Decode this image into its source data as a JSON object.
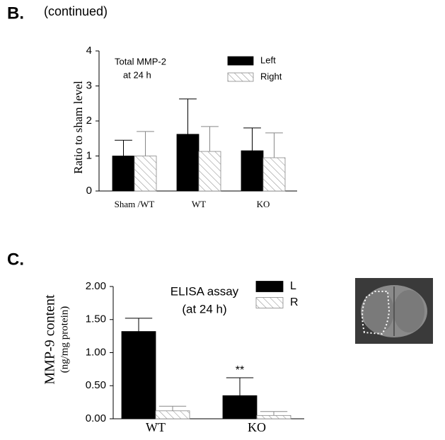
{
  "chart_data": [
    {
      "type": "bar",
      "panel": "B.",
      "note": "(continued)",
      "title": [
        "Total MMP-2",
        "at 24 h"
      ],
      "y_label": [
        "Ratio to sham level"
      ],
      "categories": [
        "Sham /WT",
        "WT",
        "KO"
      ],
      "series": [
        {
          "name": "Left",
          "color": "#000000",
          "values": [
            1.0,
            1.62,
            1.15
          ],
          "errors": [
            0.45,
            1.01,
            0.65
          ]
        },
        {
          "name": "Right",
          "color": "#888888",
          "hatch": true,
          "values": [
            1.0,
            1.13,
            0.95
          ],
          "errors": [
            0.7,
            0.71,
            0.71
          ]
        }
      ],
      "ylim": [
        0,
        4
      ],
      "yticks": [
        0,
        1,
        2,
        3,
        4
      ]
    },
    {
      "type": "bar",
      "panel": "C.",
      "title": [
        "ELISA assay",
        "(at 24 h)"
      ],
      "y_label": [
        "MMP-9 content",
        "(ng/mg protein)"
      ],
      "categories": [
        "WT",
        "KO"
      ],
      "series": [
        {
          "name": "L",
          "color": "#000000",
          "values": [
            1.32,
            0.35
          ],
          "errors": [
            0.2,
            0.27
          ]
        },
        {
          "name": "R",
          "color": "#888888",
          "hatch": true,
          "values": [
            0.12,
            0.05
          ],
          "errors": [
            0.07,
            0.06
          ]
        }
      ],
      "annotations": [
        {
          "text": "**",
          "category": 1
        }
      ],
      "ylim": [
        0,
        2
      ],
      "yticks": [
        {
          "value": 0,
          "label": "0.00"
        },
        {
          "value": 0.5,
          "label": "0.50"
        },
        {
          "value": 1,
          "label": "1.00"
        },
        {
          "value": 1.5,
          "label": "1.50"
        },
        {
          "value": 2,
          "label": "2.00"
        }
      ]
    }
  ]
}
